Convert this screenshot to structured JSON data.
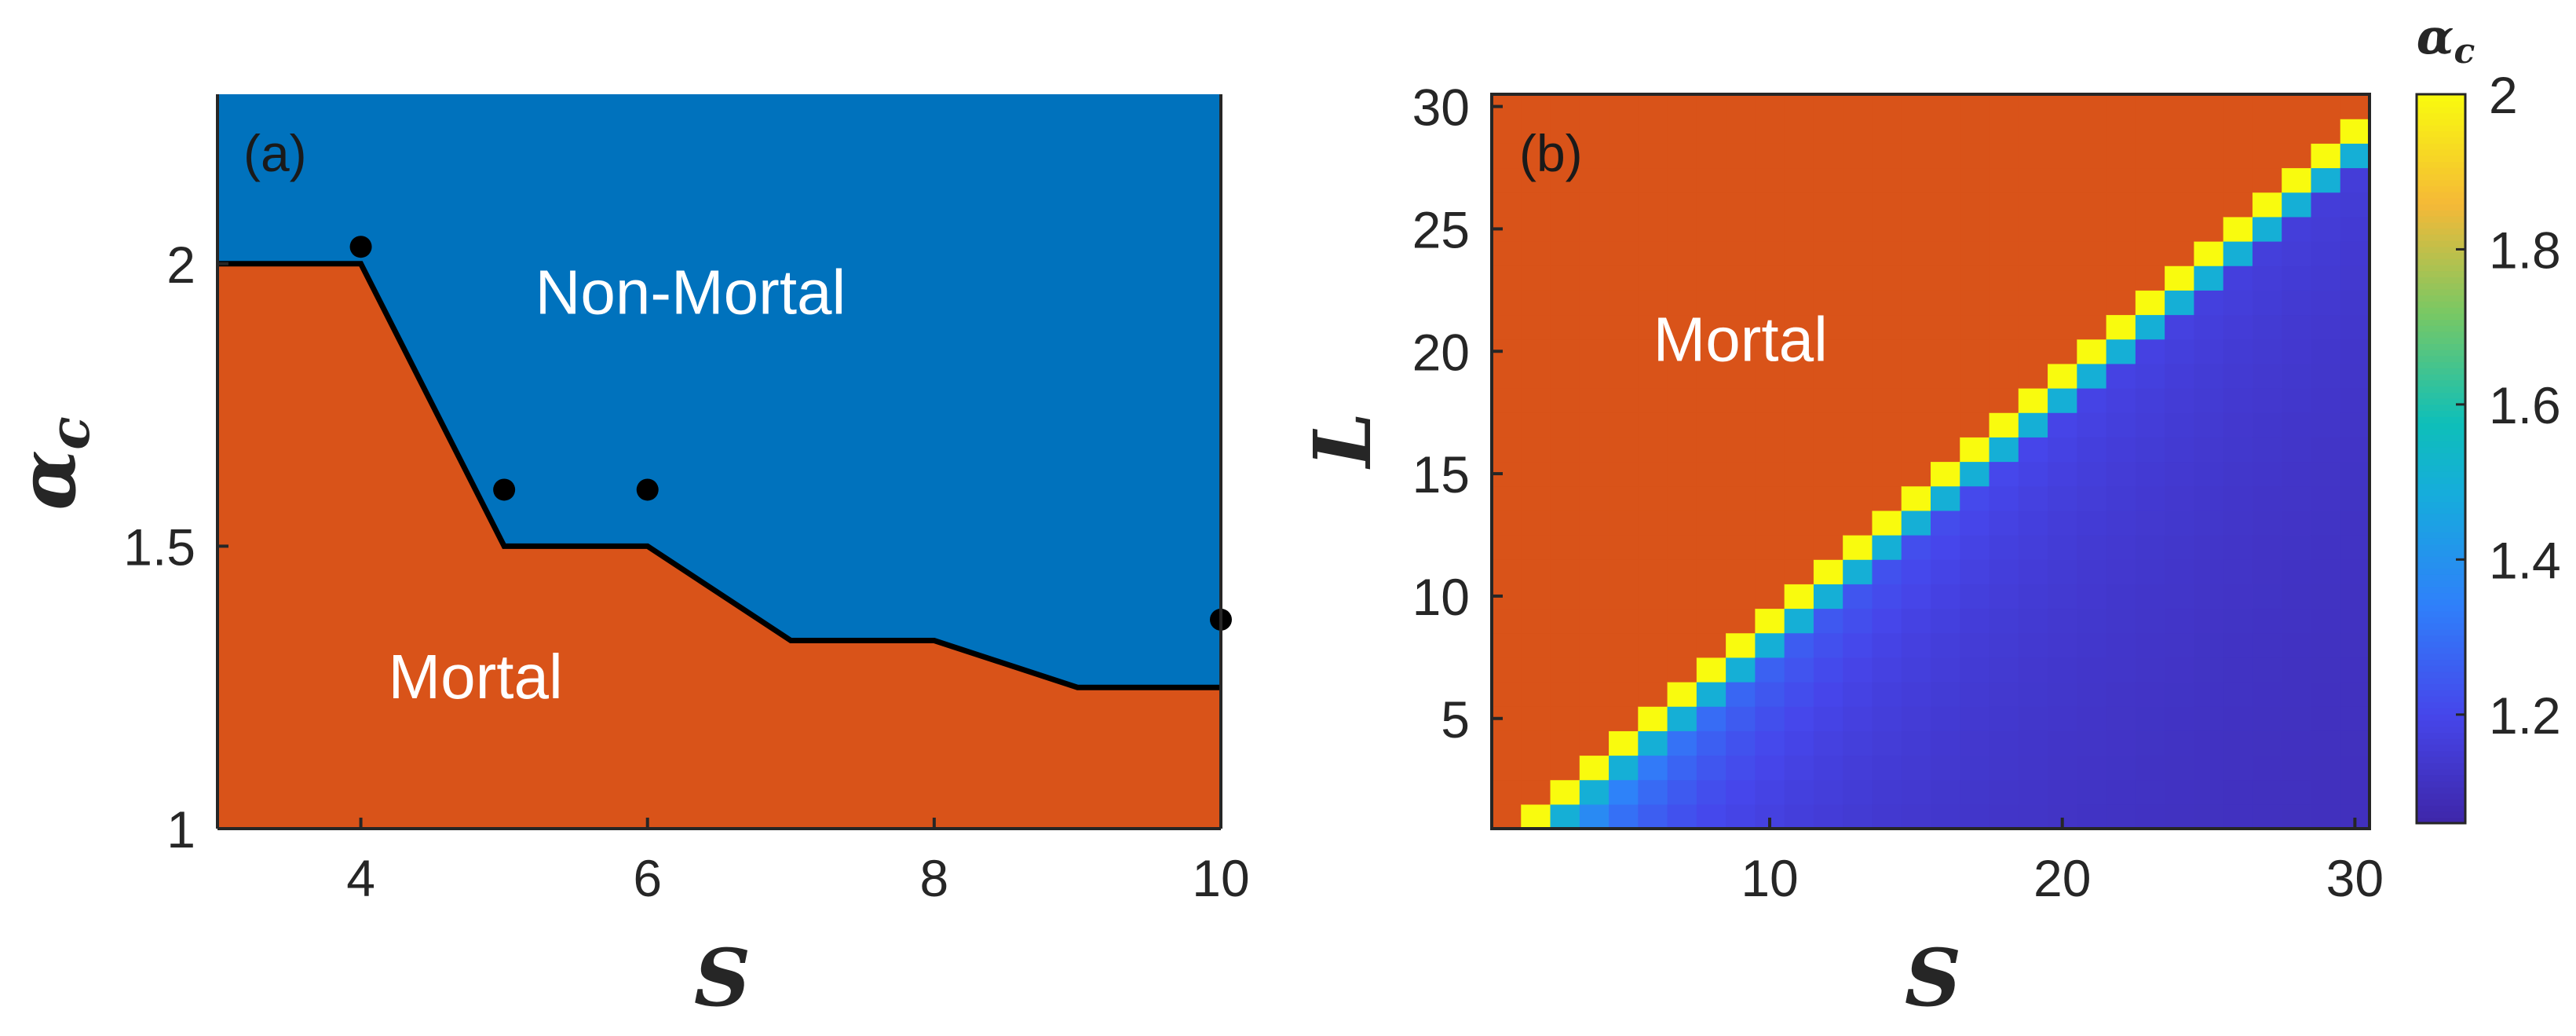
{
  "chart_data": [
    {
      "type": "area",
      "panel_label": "(a)",
      "xlabel": "S",
      "ylabel": "α_c",
      "xlim": [
        3,
        10
      ],
      "ylim": [
        1,
        2.3
      ],
      "xticks": [
        "4",
        "6",
        "8",
        "10"
      ],
      "xtick_values": [
        4,
        6,
        8,
        10
      ],
      "yticks": [
        "1",
        "1.5",
        "2"
      ],
      "ytick_values": [
        1,
        1.5,
        2
      ],
      "boundary": {
        "x": [
          3,
          4,
          5,
          6,
          7,
          8,
          9,
          10
        ],
        "y": [
          2,
          2,
          1.5,
          1.5,
          1.333,
          1.333,
          1.25,
          1.25
        ]
      },
      "markers": {
        "x": [
          4,
          5,
          6,
          10
        ],
        "y": [
          2.03,
          1.6,
          1.6,
          1.37
        ]
      },
      "regions": [
        {
          "label": "Non-Mortal",
          "color": "#0072BD",
          "x": 6.3,
          "y": 1.95
        },
        {
          "label": "Mortal",
          "color": "#D95319",
          "x": 4.8,
          "y": 1.27
        }
      ],
      "grid": false
    },
    {
      "type": "heatmap",
      "panel_label": "(b)",
      "xlabel": "S",
      "ylabel": "L",
      "xlim": [
        1,
        30
      ],
      "ylim": [
        1,
        30
      ],
      "xticks": [
        "10",
        "20",
        "30"
      ],
      "xtick_values": [
        10,
        20,
        30
      ],
      "yticks": [
        "5",
        "10",
        "15",
        "20",
        "25",
        "30"
      ],
      "ytick_values": [
        5,
        10,
        15,
        20,
        25,
        30
      ],
      "rule": "L >= S: Mortal; otherwise alpha_c = (S - 1) / (S - L)... visually ~ 1 + 1/(S-L)",
      "mortal_region": {
        "label": "Mortal",
        "color": "#D95319",
        "x": 9,
        "y": 20.5
      },
      "colorbar": {
        "title": "α_c",
        "range": [
          1.06,
          2
        ],
        "ticks": [
          "1.2",
          "1.4",
          "1.6",
          "1.8",
          "2"
        ],
        "tick_values": [
          1.2,
          1.4,
          1.6,
          1.8,
          2
        ]
      },
      "grid": false
    }
  ]
}
